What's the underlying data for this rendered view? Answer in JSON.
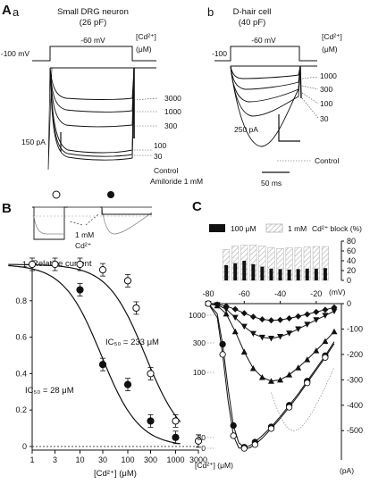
{
  "panel_A": {
    "letter": "A",
    "a": {
      "sublabel": "a",
      "title_line1": "Small DRG neuron",
      "title_line2": "(26 pF)",
      "hold_label": "-100 mV",
      "step_label": "-60 mV",
      "cd_label_line1": "[Cd²⁺]",
      "cd_label_line2": "(μM)",
      "trace_labels": [
        "3000",
        "1000",
        "300",
        "100",
        "30",
        "Control",
        "Amiloride 1 mM"
      ],
      "scale_label": "150 pA"
    },
    "b": {
      "sublabel": "b",
      "title_line1": "D-hair cell",
      "title_line2": "(40 pF)",
      "hold_label": "-100",
      "step_label": "-60 mV",
      "cd_label_line1": "[Cd²⁺]",
      "cd_label_line2": "(μM)",
      "trace_labels": [
        "1000",
        "300",
        "100",
        "30",
        "Control"
      ],
      "scale_label": "250 pA",
      "time_scale_label": "50 ms"
    }
  },
  "panel_B": {
    "letter": "B",
    "callout_line1": "1 mM",
    "callout_line2": "Cd²⁺"
  },
  "panel_C": {
    "letter": "C",
    "legend_100": "100 μM",
    "legend_1mM": "1 mM",
    "block_axis_label": "Cd²⁺ block (%)",
    "v_unit": "(mV)",
    "i_unit": "(pA)",
    "cd_axis_label": "[Cd²⁺] (μM)"
  },
  "chart_data": [
    {
      "type": "scatter",
      "panel": "B",
      "ylabel": "Relative current",
      "xlabel": "[Cd²⁺] (μM)",
      "xscale": "log",
      "x_ticks": [
        "1",
        "3",
        "10",
        "30",
        "100",
        "300",
        "1000",
        "3000"
      ],
      "y_ticks": [
        "0",
        "0.2",
        "0.4",
        "0.6",
        "0.8",
        "1"
      ],
      "xlim": [
        1,
        3000
      ],
      "ylim": [
        0,
        1
      ],
      "annotations": [
        "IC₅₀ = 233 μM",
        "IC₅₀ = 28 μM"
      ],
      "series": [
        {
          "marker": "open-circle",
          "ic50": 233,
          "x": [
            1,
            3,
            10,
            30,
            100,
            150,
            300,
            1000,
            3000
          ],
          "y": [
            1.0,
            1.0,
            1.0,
            0.97,
            0.91,
            0.76,
            0.4,
            0.14,
            0.03
          ]
        },
        {
          "marker": "filled-circle",
          "ic50": 28,
          "x": [
            10,
            30,
            100,
            300,
            1000
          ],
          "y": [
            0.86,
            0.45,
            0.34,
            0.14,
            0.05
          ]
        }
      ]
    },
    {
      "type": "bar",
      "panel": "C-top",
      "ylabel": "Cd²⁺ block (%)",
      "y_ticks": [
        "0",
        "20",
        "40",
        "60",
        "80"
      ],
      "ylim": [
        0,
        80
      ],
      "x": [
        -70,
        -65,
        -60,
        -55,
        -50,
        -45,
        -40,
        -35,
        -30,
        -25,
        -20,
        -15
      ],
      "series": [
        {
          "name": "100 μM",
          "values": [
            31,
            35,
            40,
            33,
            28,
            24,
            23,
            22,
            23,
            24,
            24,
            25
          ]
        },
        {
          "name": "1 mM",
          "values": [
            63,
            70,
            72,
            72,
            70,
            67,
            65,
            66,
            67,
            68,
            69,
            69
          ]
        }
      ]
    },
    {
      "type": "line",
      "panel": "C-bottom",
      "xlabel": "(mV)",
      "ylabel": "(pA)",
      "x_ticks": [
        "-80",
        "-60",
        "-40",
        "-20"
      ],
      "y_ticks": [
        "0",
        "-100",
        "-200",
        "-300",
        "-400",
        "-500"
      ],
      "xlim": [
        -80,
        -6
      ],
      "ylim": [
        -580,
        0
      ],
      "series": [
        {
          "name": "1000",
          "marker": "diamond",
          "x": [
            -80,
            -75,
            -70,
            -65,
            -60,
            -55,
            -50,
            -45,
            -40,
            -35,
            -30,
            -25,
            -20,
            -15,
            -10
          ],
          "y": [
            0,
            -3,
            -10,
            -22,
            -38,
            -52,
            -62,
            -66,
            -64,
            -58,
            -50,
            -42,
            -33,
            -24,
            -15
          ]
        },
        {
          "name": "300",
          "marker": "triangle-down",
          "x": [
            -80,
            -75,
            -70,
            -65,
            -60,
            -55,
            -50,
            -45,
            -40,
            -35,
            -30,
            -25,
            -20,
            -15,
            -10
          ],
          "y": [
            0,
            -5,
            -22,
            -55,
            -90,
            -118,
            -133,
            -137,
            -130,
            -117,
            -100,
            -82,
            -64,
            -47,
            -30
          ]
        },
        {
          "name": "100",
          "marker": "triangle-up",
          "x": [
            -80,
            -75,
            -70,
            -65,
            -60,
            -55,
            -50,
            -45,
            -40,
            -35,
            -30,
            -25,
            -20,
            -15,
            -10
          ],
          "y": [
            0,
            -8,
            -40,
            -110,
            -190,
            -255,
            -290,
            -305,
            -300,
            -280,
            -252,
            -220,
            -185,
            -148,
            -110
          ]
        },
        {
          "name": "30",
          "marker": "filled-circle",
          "x": [
            -80,
            -75,
            -72,
            -69,
            -66,
            -63,
            -60,
            -57,
            -54,
            -50,
            -45,
            -40,
            -35,
            -30,
            -25,
            -20,
            -15,
            -10
          ],
          "y": [
            0,
            -40,
            -160,
            -330,
            -480,
            -548,
            -565,
            -560,
            -545,
            -520,
            -485,
            -445,
            -400,
            -355,
            -305,
            -255,
            -205,
            -150
          ]
        },
        {
          "name": "0",
          "marker": "open-circle",
          "x": [
            -80,
            -75,
            -72,
            -69,
            -66,
            -63,
            -60,
            -57,
            -54,
            -50,
            -45,
            -40,
            -35,
            -30,
            -25,
            -20,
            -15,
            -10
          ],
          "y": [
            0,
            -55,
            -200,
            -380,
            -520,
            -568,
            -570,
            -568,
            -555,
            -530,
            -492,
            -452,
            -408,
            -362,
            -312,
            -262,
            -212,
            -158
          ]
        }
      ]
    }
  ]
}
